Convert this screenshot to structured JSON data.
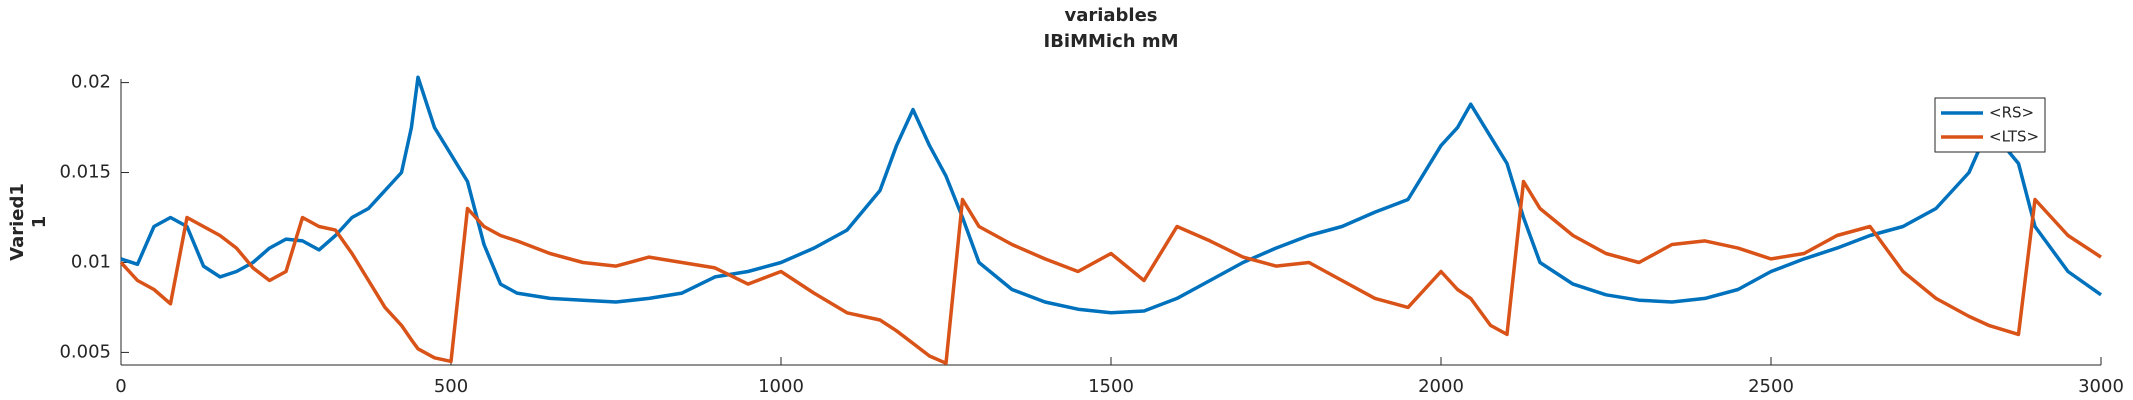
{
  "chart_data": {
    "type": "line",
    "title": "variables",
    "subtitle": "IBiMMich mM",
    "y_label": [
      "Varied1",
      "1"
    ],
    "x": [
      0,
      25,
      50,
      75,
      100,
      125,
      150,
      175,
      200,
      225,
      250,
      275,
      300,
      325,
      350,
      375,
      400,
      425,
      440,
      450,
      475,
      500,
      525,
      550,
      575,
      600,
      650,
      700,
      750,
      800,
      850,
      900,
      950,
      1000,
      1050,
      1100,
      1150,
      1175,
      1200,
      1225,
      1250,
      1275,
      1300,
      1350,
      1400,
      1450,
      1500,
      1550,
      1600,
      1650,
      1700,
      1750,
      1800,
      1850,
      1900,
      1950,
      2000,
      2025,
      2045,
      2075,
      2100,
      2125,
      2150,
      2200,
      2250,
      2300,
      2350,
      2400,
      2450,
      2500,
      2550,
      2600,
      2650,
      2700,
      2750,
      2800,
      2830,
      2875,
      2900,
      2950,
      3000
    ],
    "series": [
      {
        "name": "<RS>",
        "color": "#0072BD",
        "values": [
          0.0102,
          0.0099,
          0.012,
          0.0125,
          0.012,
          0.0098,
          0.0092,
          0.0095,
          0.01,
          0.0108,
          0.0113,
          0.0112,
          0.0107,
          0.0115,
          0.0125,
          0.013,
          0.014,
          0.015,
          0.0175,
          0.0203,
          0.0175,
          0.016,
          0.0145,
          0.011,
          0.0088,
          0.0083,
          0.008,
          0.0079,
          0.0078,
          0.008,
          0.0083,
          0.0092,
          0.0095,
          0.01,
          0.0108,
          0.0118,
          0.014,
          0.0165,
          0.0185,
          0.0165,
          0.0148,
          0.0125,
          0.01,
          0.0085,
          0.0078,
          0.0074,
          0.0072,
          0.0073,
          0.008,
          0.009,
          0.01,
          0.0108,
          0.0115,
          0.012,
          0.0128,
          0.0135,
          0.0165,
          0.0175,
          0.0188,
          0.017,
          0.0155,
          0.0125,
          0.01,
          0.0088,
          0.0082,
          0.0079,
          0.0078,
          0.008,
          0.0085,
          0.0095,
          0.0102,
          0.0108,
          0.0115,
          0.012,
          0.013,
          0.015,
          0.0175,
          0.0155,
          0.012,
          0.0095,
          0.0082
        ]
      },
      {
        "name": "<LTS>",
        "color": "#D95319",
        "values": [
          0.01,
          0.009,
          0.0085,
          0.0077,
          0.0125,
          0.012,
          0.0115,
          0.0108,
          0.0097,
          0.009,
          0.0095,
          0.0125,
          0.012,
          0.0118,
          0.0105,
          0.009,
          0.0075,
          0.0065,
          0.0057,
          0.0052,
          0.0047,
          0.0045,
          0.013,
          0.012,
          0.0115,
          0.0112,
          0.0105,
          0.01,
          0.0098,
          0.0103,
          0.01,
          0.0097,
          0.0088,
          0.0095,
          0.0083,
          0.0072,
          0.0068,
          0.0062,
          0.0055,
          0.0048,
          0.0044,
          0.0135,
          0.012,
          0.011,
          0.0102,
          0.0095,
          0.0105,
          0.009,
          0.012,
          0.0112,
          0.0103,
          0.0098,
          0.01,
          0.009,
          0.008,
          0.0075,
          0.0095,
          0.0085,
          0.008,
          0.0065,
          0.006,
          0.0145,
          0.013,
          0.0115,
          0.0105,
          0.01,
          0.011,
          0.0112,
          0.0108,
          0.0102,
          0.0105,
          0.0115,
          0.012,
          0.0095,
          0.008,
          0.007,
          0.0065,
          0.006,
          0.0135,
          0.0115,
          0.0103
        ]
      }
    ],
    "xlim": [
      0,
      3000
    ],
    "xticks": [
      0,
      500,
      1000,
      1500,
      2000,
      2500,
      3000
    ],
    "ylim": [
      0.0043,
      0.0202
    ],
    "yticks": [
      0.005,
      0.01,
      0.015,
      0.02
    ],
    "grid": false,
    "legend": "upper right"
  }
}
